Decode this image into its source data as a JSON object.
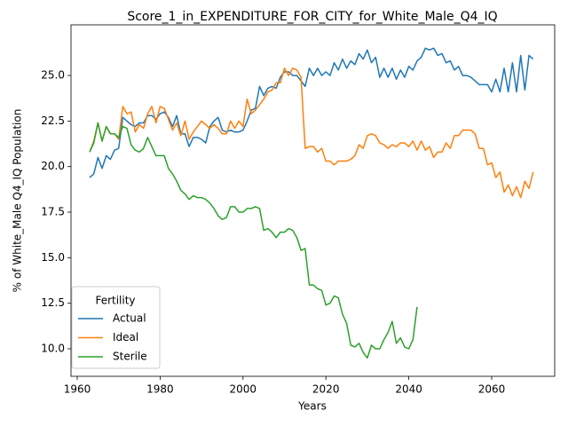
{
  "chart_data": {
    "type": "line",
    "title": "Score_1_in_EXPENDITURE_FOR_CITY_for_White_Male_Q4_IQ",
    "xlabel": "Years",
    "ylabel": "% of White_Male Q4_IQ Population",
    "legend_title": "Fertility",
    "legend": "lower left",
    "grid": false,
    "x": [
      1963,
      1964,
      1965,
      1966,
      1967,
      1968,
      1969,
      1970,
      1971,
      1972,
      1973,
      1974,
      1975,
      1976,
      1977,
      1978,
      1979,
      1980,
      1981,
      1982,
      1983,
      1984,
      1985,
      1986,
      1987,
      1988,
      1989,
      1990,
      1991,
      1992,
      1993,
      1994,
      1995,
      1996,
      1997,
      1998,
      1999,
      2000,
      2001,
      2002,
      2003,
      2004,
      2005,
      2006,
      2007,
      2008,
      2009,
      2010,
      2011,
      2012,
      2013,
      2014,
      2015,
      2016,
      2017,
      2018,
      2019,
      2020,
      2021,
      2022,
      2023,
      2024,
      2025,
      2026,
      2027,
      2028,
      2029,
      2030,
      2031,
      2032,
      2033,
      2034,
      2035,
      2036,
      2037,
      2038,
      2039,
      2040,
      2041,
      2042,
      2043,
      2044,
      2045,
      2046,
      2047,
      2048,
      2049,
      2050,
      2051,
      2052,
      2053,
      2054,
      2055,
      2056,
      2057,
      2058,
      2059,
      2060,
      2061,
      2062,
      2063,
      2064,
      2065,
      2066,
      2067,
      2068,
      2069,
      2070
    ],
    "series": [
      {
        "name": "Actual",
        "color": "#1f77b4",
        "values": [
          19.4,
          19.6,
          20.5,
          19.9,
          20.6,
          20.4,
          20.9,
          21.0,
          22.7,
          22.5,
          22.3,
          22.2,
          22.4,
          22.4,
          22.8,
          22.8,
          22.6,
          22.9,
          23.0,
          22.7,
          22.2,
          22.8,
          21.8,
          21.8,
          21.1,
          21.6,
          21.6,
          21.5,
          21.3,
          22.2,
          22.5,
          22.7,
          22.0,
          21.9,
          22.0,
          21.9,
          21.9,
          22.0,
          22.5,
          23.1,
          23.2,
          24.4,
          23.9,
          24.3,
          24.4,
          24.3,
          24.9,
          25.2,
          25.2,
          25.0,
          25.0,
          24.7,
          24.4,
          25.4,
          25.0,
          25.4,
          25.0,
          25.2,
          25.0,
          25.7,
          25.3,
          25.9,
          25.4,
          25.8,
          25.6,
          26.2,
          25.9,
          26.4,
          25.7,
          26.0,
          24.9,
          25.4,
          24.9,
          25.4,
          24.8,
          25.3,
          24.9,
          25.5,
          25.3,
          25.8,
          26.0,
          26.5,
          26.4,
          26.5,
          26.1,
          26.2,
          25.7,
          25.8,
          25.3,
          25.5,
          25.0,
          25.0,
          24.9,
          24.7,
          24.5,
          24.5,
          24.5,
          24.1,
          24.8,
          24.1,
          25.4,
          24.1,
          25.7,
          24.1,
          26.1,
          24.2,
          26.1,
          25.9
        ]
      },
      {
        "name": "Ideal",
        "color": "#ff7f0e",
        "values": [
          20.8,
          21.4,
          22.4,
          21.4,
          22.2,
          21.8,
          21.8,
          21.5,
          23.3,
          22.9,
          23.0,
          21.9,
          22.3,
          22.1,
          22.9,
          23.3,
          22.4,
          23.3,
          23.2,
          22.6,
          22.0,
          22.4,
          21.7,
          22.5,
          21.5,
          21.9,
          22.2,
          22.5,
          22.3,
          22.1,
          22.3,
          22.1,
          21.8,
          21.8,
          22.5,
          22.1,
          22.5,
          22.2,
          23.7,
          22.9,
          23.1,
          23.4,
          23.7,
          24.1,
          24.2,
          24.6,
          24.6,
          25.4,
          25.0,
          25.4,
          25.3,
          24.9,
          21.0,
          21.1,
          21.1,
          20.8,
          21.0,
          20.3,
          20.3,
          20.1,
          20.3,
          20.3,
          20.3,
          20.4,
          20.6,
          21.2,
          21.0,
          21.7,
          21.8,
          21.7,
          21.3,
          21.2,
          21.0,
          21.2,
          21.1,
          21.3,
          21.3,
          21.1,
          21.4,
          20.9,
          21.4,
          20.9,
          21.1,
          20.5,
          20.8,
          20.8,
          21.3,
          21.0,
          21.7,
          21.7,
          22.0,
          22.0,
          22.0,
          21.8,
          21.0,
          21.0,
          20.1,
          20.2,
          19.4,
          19.7,
          18.6,
          19.0,
          18.4,
          18.9,
          18.3,
          19.2,
          18.8,
          19.7
        ]
      },
      {
        "name": "Sterile",
        "color": "#2ca02c",
        "values": [
          20.8,
          21.3,
          22.4,
          21.4,
          22.2,
          21.8,
          21.8,
          21.6,
          22.2,
          22.1,
          21.2,
          20.9,
          20.8,
          21.0,
          21.6,
          21.1,
          20.6,
          20.6,
          20.6,
          19.9,
          19.6,
          19.2,
          18.7,
          18.5,
          18.2,
          18.4,
          18.3,
          18.3,
          18.2,
          18.0,
          17.7,
          17.3,
          17.1,
          17.2,
          17.8,
          17.8,
          17.5,
          17.5,
          17.7,
          17.7,
          17.8,
          17.7,
          16.5,
          16.6,
          16.4,
          16.1,
          16.4,
          16.4,
          16.6,
          16.5,
          16.1,
          15.4,
          15.5,
          13.5,
          13.5,
          13.3,
          13.2,
          12.4,
          12.5,
          12.9,
          12.8,
          11.9,
          11.4,
          10.2,
          10.1,
          10.3,
          9.8,
          9.5,
          10.2,
          10.0,
          10.0,
          10.5,
          10.9,
          11.5,
          10.3,
          10.6,
          10.1,
          10.0,
          10.5,
          12.3,
          null,
          null,
          null,
          null,
          null,
          null,
          null,
          null,
          null,
          null,
          null,
          null,
          null,
          null,
          null,
          null,
          null,
          null,
          null,
          null,
          null,
          null,
          null,
          null,
          null,
          null,
          null,
          null
        ]
      }
    ],
    "xlim": [
      1958.5,
      2075.2
    ],
    "xticks": [
      1960,
      1980,
      2000,
      2020,
      2040,
      2060
    ],
    "ylim": [
      8.49,
      27.78
    ],
    "yticks": [
      {
        "value": 10,
        "label": "10.0"
      },
      {
        "value": 12.5,
        "label": "12.5"
      },
      {
        "value": 15,
        "label": "15.0"
      },
      {
        "value": 17.5,
        "label": "17.5"
      },
      {
        "value": 20,
        "label": "20.0"
      },
      {
        "value": 22.5,
        "label": "22.5"
      },
      {
        "value": 25,
        "label": "25.0"
      }
    ]
  }
}
